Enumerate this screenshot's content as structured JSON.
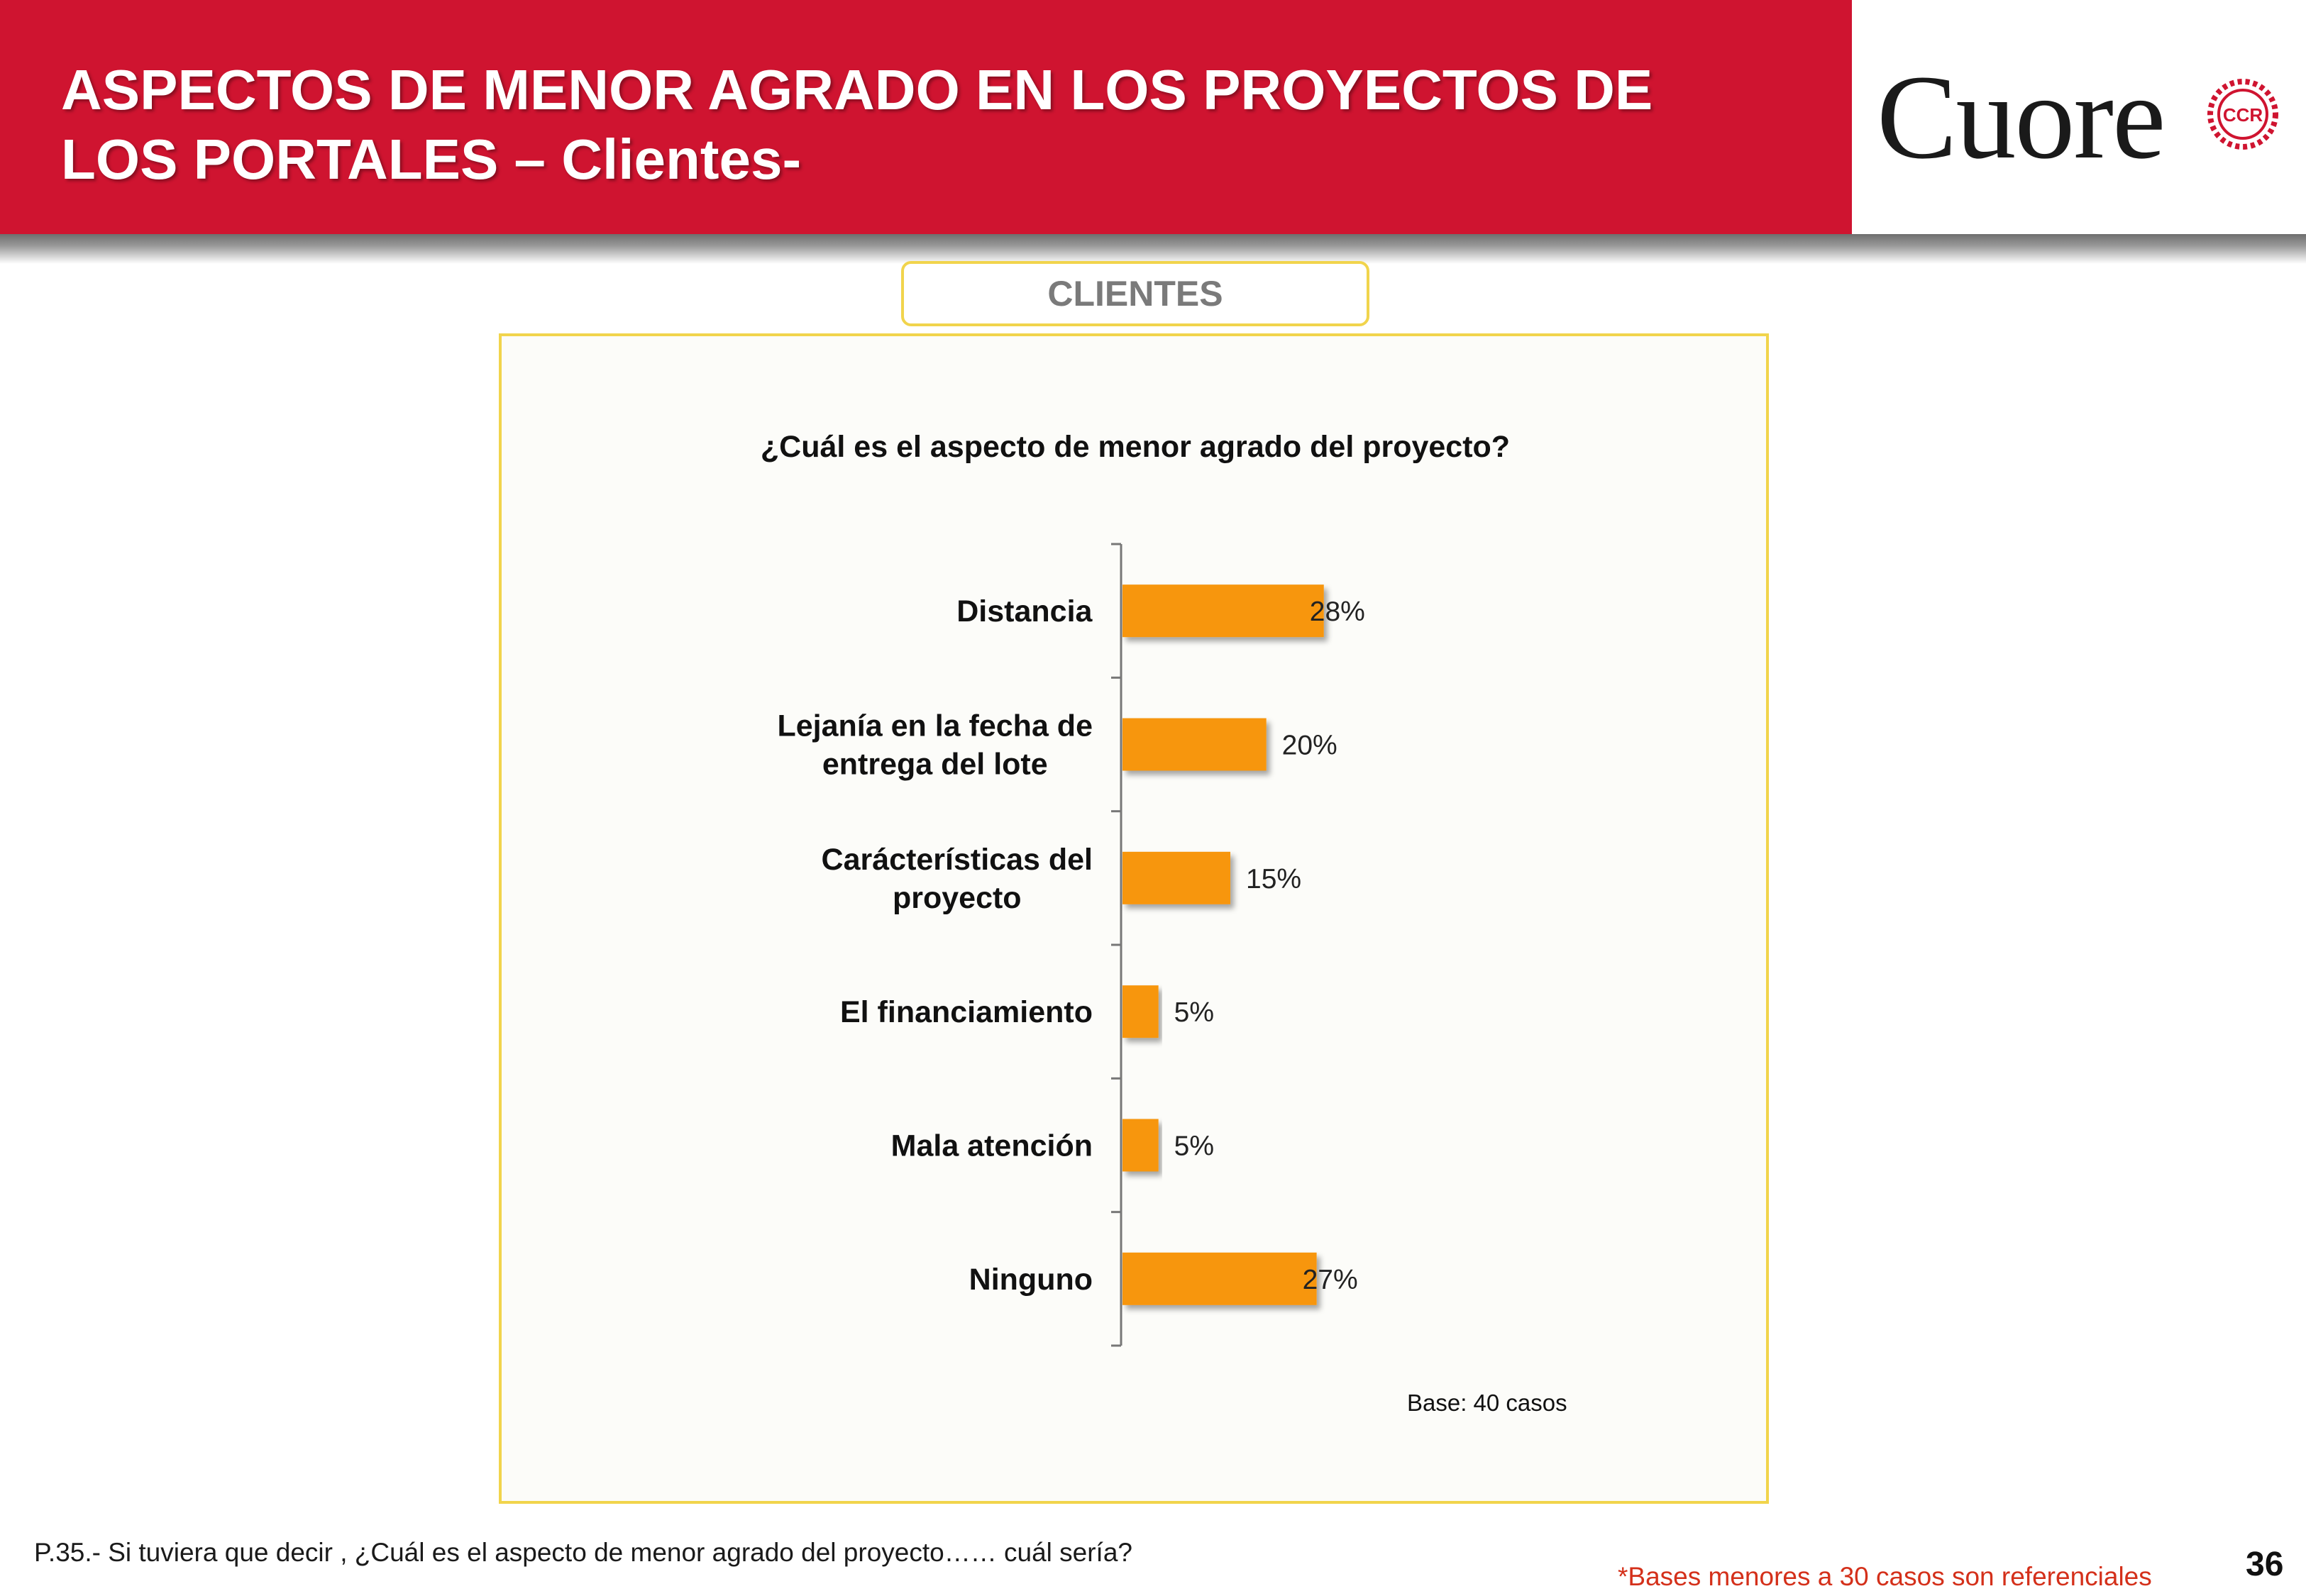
{
  "header": {
    "title_line1": "ASPECTOS DE MENOR AGRADO EN LOS PROYECTOS DE",
    "title_line2": "LOS PORTALES – Clientes-"
  },
  "logo": {
    "text": "Cuore",
    "seal_text": "CCR",
    "seal_color": "#cf1430"
  },
  "segment_label": "CLIENTES",
  "chart_data": {
    "type": "bar",
    "orientation": "horizontal",
    "title": "¿Cuál es el aspecto de menor agrado del proyecto?",
    "categories": [
      [
        "Distancia"
      ],
      [
        "Lejanía en la fecha de",
        "entrega del lote"
      ],
      [
        "Carácterísticas del",
        "proyecto"
      ],
      [
        "El financiamiento"
      ],
      [
        "Mala atención"
      ],
      [
        "Ninguno"
      ]
    ],
    "values": [
      28,
      20,
      15,
      5,
      5,
      27
    ],
    "value_labels": [
      "28%",
      "20%",
      "15%",
      "5%",
      "5%",
      "27%"
    ],
    "unit": "%",
    "xlim": [
      0,
      50
    ],
    "bar_color": "#f7960e",
    "grid": false,
    "legend": "none",
    "annotation": "Base: 40 casos"
  },
  "footer": {
    "question": "P.35.- Si tuviera que decir , ¿Cuál es el aspecto de menor agrado del proyecto…… cuál sería?",
    "note": "*Bases menores a 30 casos son referenciales",
    "page_number": "36"
  }
}
